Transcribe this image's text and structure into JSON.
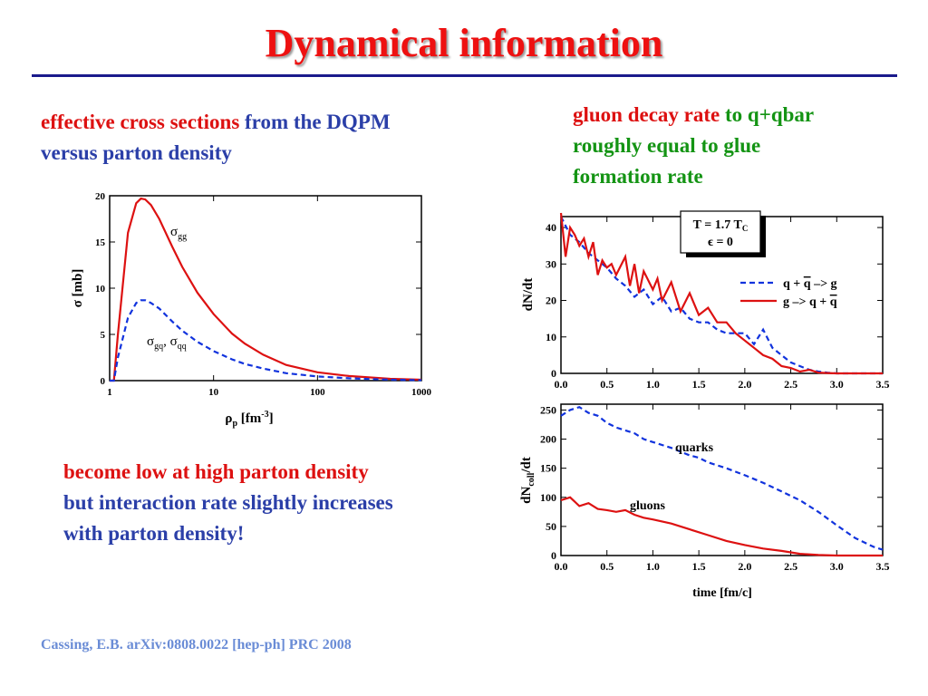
{
  "slide": {
    "title": "Dynamical information"
  },
  "left_caption": {
    "part1": "effective cross sections",
    "part2": " from the ",
    "part3": "DQPM",
    "line2": "versus parton density"
  },
  "right_caption": {
    "part1": "gluon decay rate",
    "part2": " to q+qbar",
    "line2": "roughly equal to glue",
    "line3": "formation rate"
  },
  "bottom_caption": {
    "line1": "become low at high parton density",
    "line2": "but interaction rate slightly increases",
    "line3": "with parton density!"
  },
  "citation": "Cassing, E.B. arXiv:0808.0022 [hep-ph]  PRC 2008",
  "colors": {
    "title": "#ee1111",
    "rule": "#1a1a8c",
    "red_curve": "#dd1111",
    "blue_curve": "#1133dd",
    "caption_blue": "#2b3fa8",
    "caption_green": "#149414",
    "citation": "#6a8cd6"
  },
  "chart_data": [
    {
      "type": "line",
      "xscale": "log",
      "xlabel": "ρp [fm-3]",
      "ylabel": "σ [mb]",
      "xlim": [
        1,
        1000
      ],
      "ylim": [
        0,
        20
      ],
      "x_ticks": [
        "1",
        "10",
        "100",
        "1000"
      ],
      "y_ticks": [
        "0",
        "5",
        "10",
        "15",
        "20"
      ],
      "series": [
        {
          "name": "σgg",
          "style": "solid",
          "color": "#dd1111",
          "x": [
            1.0,
            1.1,
            1.2,
            1.5,
            1.8,
            2.0,
            2.2,
            2.5,
            3,
            4,
            5,
            7,
            10,
            15,
            20,
            30,
            50,
            100,
            200,
            500,
            1000
          ],
          "y": [
            0,
            0,
            5,
            16,
            19.2,
            19.7,
            19.6,
            19.0,
            17.5,
            14.5,
            12.3,
            9.5,
            7.2,
            5.1,
            4.0,
            2.8,
            1.7,
            0.9,
            0.5,
            0.2,
            0.1
          ]
        },
        {
          "name": "σgq, σqq",
          "style": "dashed",
          "color": "#1133dd",
          "x": [
            1.0,
            1.1,
            1.2,
            1.5,
            1.8,
            2.0,
            2.2,
            2.5,
            3,
            4,
            5,
            7,
            10,
            15,
            20,
            30,
            50,
            100,
            200,
            500,
            1000
          ],
          "y": [
            0,
            0,
            2.5,
            6.8,
            8.4,
            8.7,
            8.7,
            8.4,
            7.8,
            6.4,
            5.4,
            4.2,
            3.2,
            2.3,
            1.8,
            1.3,
            0.8,
            0.45,
            0.25,
            0.1,
            0.05
          ]
        }
      ]
    },
    {
      "type": "line",
      "ylabel": "dN/dt",
      "xlim": [
        0,
        3.5
      ],
      "ylim": [
        0,
        43
      ],
      "x_ticks": [
        "0.0",
        "0.5",
        "1.0",
        "1.5",
        "2.0",
        "2.5",
        "3.0",
        "3.5"
      ],
      "y_ticks": [
        "0",
        "10",
        "20",
        "30",
        "40"
      ],
      "annotation": {
        "line1": "T = 1.7 Tc",
        "line2": "ε = 0"
      },
      "legend_position": "right",
      "series": [
        {
          "name": "q + q̄ -> g",
          "style": "dashed",
          "color": "#1133dd",
          "x": [
            0,
            0.1,
            0.2,
            0.3,
            0.4,
            0.5,
            0.6,
            0.7,
            0.8,
            0.9,
            1.0,
            1.1,
            1.2,
            1.3,
            1.4,
            1.5,
            1.6,
            1.7,
            1.8,
            1.9,
            2.0,
            2.1,
            2.2,
            2.3,
            2.4,
            2.5,
            2.6,
            2.7,
            2.8,
            2.9,
            3.0,
            3.5
          ],
          "y": [
            43,
            38,
            36,
            33,
            31,
            29,
            26,
            24,
            21,
            23,
            19,
            21,
            17,
            18,
            15,
            14,
            14,
            12,
            11,
            11,
            11,
            8,
            12,
            7,
            5,
            3,
            2,
            1,
            0.5,
            0.2,
            0,
            0
          ]
        },
        {
          "name": "g -> q + q̄",
          "style": "solid",
          "color": "#dd1111",
          "x": [
            0,
            0.05,
            0.1,
            0.15,
            0.2,
            0.25,
            0.3,
            0.35,
            0.4,
            0.45,
            0.5,
            0.55,
            0.6,
            0.7,
            0.75,
            0.8,
            0.85,
            0.9,
            1.0,
            1.05,
            1.1,
            1.2,
            1.3,
            1.4,
            1.5,
            1.6,
            1.7,
            1.8,
            1.9,
            2.0,
            2.1,
            2.2,
            2.3,
            2.4,
            2.5,
            2.6,
            2.7,
            2.8,
            2.9,
            3.0,
            3.5
          ],
          "y": [
            44,
            32,
            40,
            38,
            35,
            37,
            32,
            36,
            27,
            31,
            29,
            30,
            27,
            32,
            24,
            30,
            22,
            28,
            23,
            26,
            20,
            25,
            17,
            22,
            16,
            18,
            14,
            14,
            11,
            9,
            7,
            5,
            4,
            2,
            1.5,
            0.5,
            1,
            0.2,
            0.1,
            0,
            0
          ]
        }
      ]
    },
    {
      "type": "line",
      "ylabel": "dNcoll/dt",
      "xlabel": "time [fm/c]",
      "xlim": [
        0,
        3.5
      ],
      "ylim": [
        0,
        260
      ],
      "x_ticks": [
        "0.0",
        "0.5",
        "1.0",
        "1.5",
        "2.0",
        "2.5",
        "3.0",
        "3.5"
      ],
      "y_ticks": [
        "0",
        "50",
        "100",
        "150",
        "200",
        "250"
      ],
      "series": [
        {
          "name": "quarks",
          "style": "dashed",
          "color": "#1133dd",
          "x": [
            0,
            0.1,
            0.2,
            0.3,
            0.4,
            0.5,
            0.6,
            0.7,
            0.8,
            0.9,
            1.0,
            1.2,
            1.4,
            1.5,
            1.6,
            1.8,
            2.0,
            2.2,
            2.4,
            2.6,
            2.8,
            3.0,
            3.2,
            3.4,
            3.5
          ],
          "y": [
            240,
            250,
            255,
            245,
            240,
            228,
            220,
            215,
            210,
            200,
            195,
            185,
            172,
            168,
            160,
            150,
            138,
            125,
            110,
            95,
            75,
            52,
            30,
            15,
            10
          ]
        },
        {
          "name": "gluons",
          "style": "solid",
          "color": "#dd1111",
          "x": [
            0,
            0.1,
            0.2,
            0.3,
            0.4,
            0.5,
            0.6,
            0.7,
            0.8,
            0.9,
            1.0,
            1.2,
            1.4,
            1.6,
            1.8,
            2.0,
            2.2,
            2.4,
            2.6,
            2.8,
            3.0,
            3.5
          ],
          "y": [
            95,
            100,
            85,
            90,
            80,
            78,
            75,
            78,
            70,
            65,
            62,
            55,
            45,
            35,
            25,
            18,
            12,
            8,
            3,
            1,
            0,
            0
          ]
        }
      ]
    }
  ]
}
